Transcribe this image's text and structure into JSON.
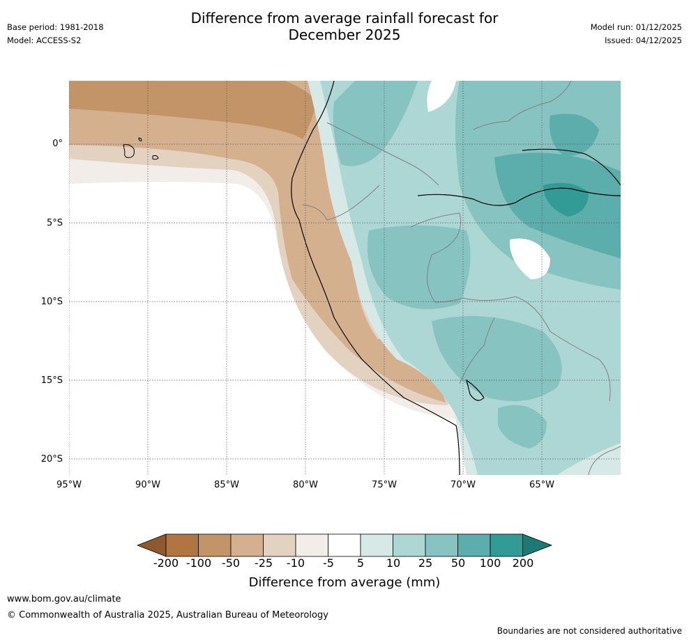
{
  "header": {
    "title_line1": "Difference from average rainfall forecast for",
    "title_line2": "December 2025",
    "base_period": "Base period: 1981-2018",
    "model": "Model: ACCESS-S2",
    "model_run": "Model run: 01/12/2025",
    "issued": "Issued: 04/12/2025"
  },
  "map": {
    "lat_ticks": [
      "0°",
      "5°S",
      "10°S",
      "15°S",
      "20°S"
    ],
    "lon_ticks": [
      "95°W",
      "90°W",
      "85°W",
      "80°W",
      "75°W",
      "70°W",
      "65°W"
    ],
    "extent": {
      "lon": [
        -95,
        -60
      ],
      "lat": [
        -21,
        4
      ]
    }
  },
  "colorbar": {
    "labels": [
      "-200",
      "-100",
      "-50",
      "-25",
      "-10",
      "-5",
      "5",
      "10",
      "25",
      "50",
      "100",
      "200"
    ],
    "colors": [
      "#8c5a2d",
      "#b07540",
      "#c29468",
      "#d4b08f",
      "#e4d2c0",
      "#f2ede8",
      "#ffffff",
      "#d6e9e7",
      "#acd7d5",
      "#86c3c1",
      "#5caeac",
      "#339b96",
      "#1e7873"
    ],
    "title": "Difference from average (mm)"
  },
  "footer": {
    "url": "www.bom.gov.au/climate",
    "copyright": "© Commonwealth of Australia 2025, Australian Bureau of Meteorology",
    "disclaimer": "Boundaries are not considered authoritative"
  }
}
